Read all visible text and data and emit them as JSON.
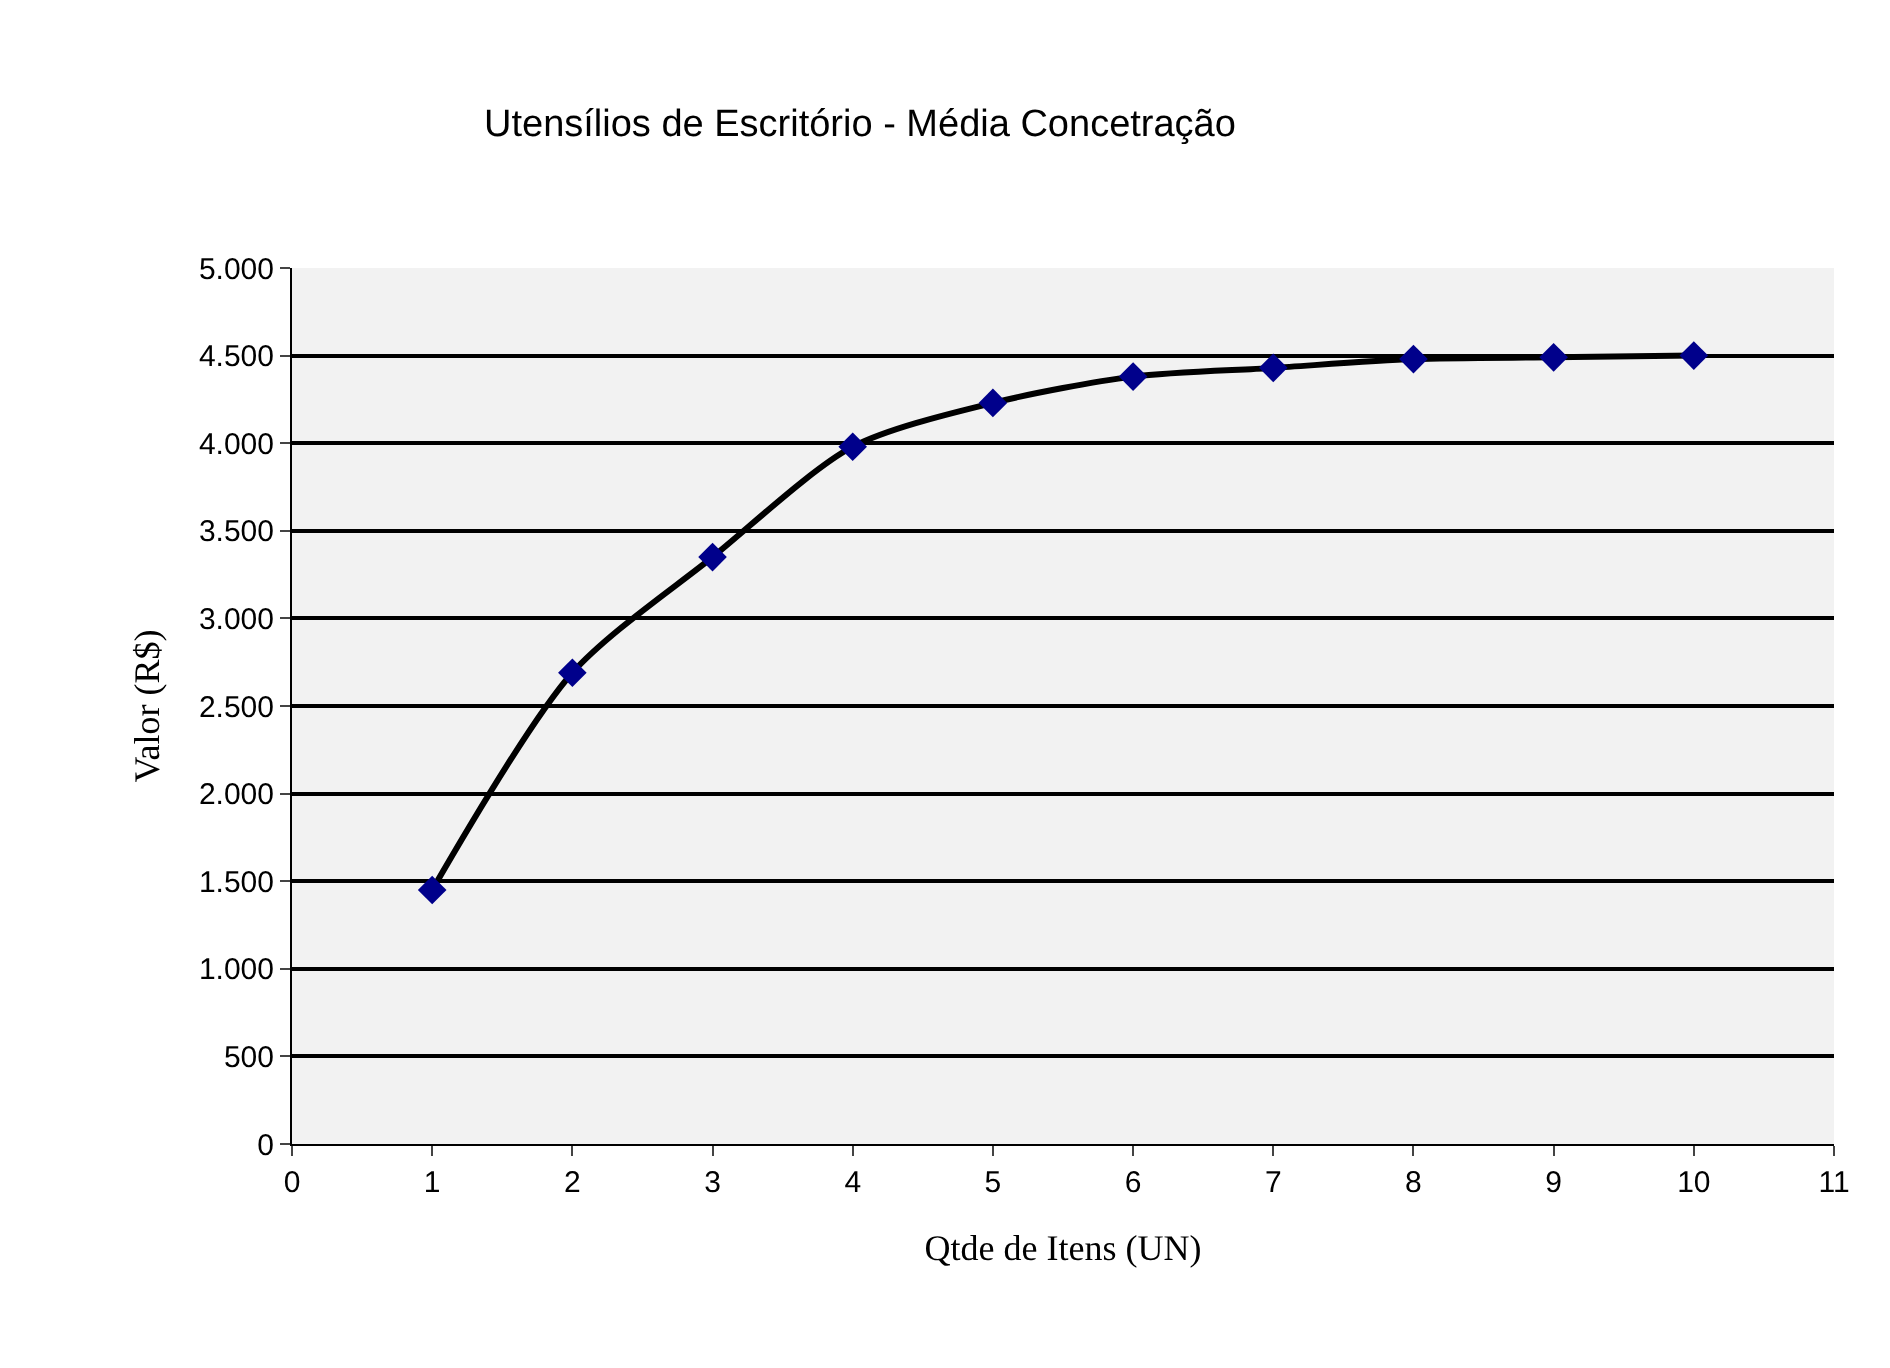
{
  "chart_data": {
    "type": "line",
    "title": "Utensílios de Escritório - Média Concetração",
    "xlabel": "Qtde de Itens (UN)",
    "ylabel": "Valor (R$)",
    "x": [
      1,
      2,
      3,
      4,
      5,
      6,
      7,
      8,
      9,
      10
    ],
    "series": [
      {
        "color": "#000000",
        "colors": [
          "#00008b",
          "#00008b",
          "#00008b",
          "#00008b",
          "#00008b",
          "#00008b",
          "#00008b",
          "#00008b",
          "#00008b",
          "#00008b"
        ],
        "values": [
          1450,
          2690,
          3350,
          3980,
          4230,
          4380,
          4430,
          4480,
          4490,
          4500
        ]
      }
    ],
    "marker": "diamond",
    "line_style": "solid",
    "grid": "y",
    "xlim": [
      0,
      11
    ],
    "xticks": [
      0,
      1,
      2,
      3,
      4,
      5,
      6,
      7,
      8,
      9,
      10,
      11
    ],
    "ylim": [
      0,
      5000
    ],
    "yticks": [
      0,
      500,
      {
        "value": 1000,
        "label": "1.000"
      },
      {
        "value": 1500,
        "label": "1.500"
      },
      {
        "value": 2000,
        "label": "2.000"
      },
      {
        "value": 2500,
        "label": "2.500"
      },
      {
        "value": 3000,
        "label": "3.000"
      },
      {
        "value": 3500,
        "label": "3.500"
      },
      {
        "value": 4000,
        "label": "4.000"
      },
      {
        "value": 4500,
        "label": "4.500"
      },
      {
        "value": 5000,
        "label": "5.000"
      }
    ]
  }
}
